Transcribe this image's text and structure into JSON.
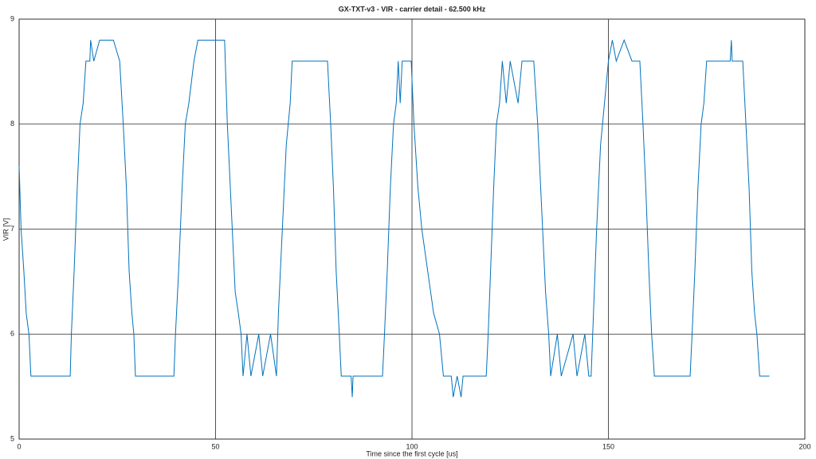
{
  "chart_data": {
    "type": "line",
    "title": "GX-TXT-v3 - VIR - carrier detail - 62.500 kHz",
    "x_label": "Time since the first cycle [us]",
    "y_label": "VIR [V]",
    "xlim": [
      0,
      200
    ],
    "xticks": [
      0,
      50,
      100,
      150,
      200
    ],
    "ylim": [
      5,
      9
    ],
    "yticks": [
      5,
      6,
      7,
      8,
      9
    ],
    "grid": true,
    "color": "#0072bd",
    "x": [
      0,
      0.5,
      1.2,
      1.8,
      2.5,
      3,
      13,
      13.3,
      14,
      14.8,
      15.5,
      16.3,
      17,
      18,
      18.2,
      19,
      20.5,
      24,
      25.6,
      26.5,
      27.3,
      28,
      28.7,
      29.2,
      29.6,
      39.4,
      39.8,
      40.6,
      41.5,
      42.3,
      43.2,
      44.5,
      45.5,
      52.3,
      53,
      54,
      55,
      55.8,
      56.5,
      57,
      58,
      59,
      61,
      62,
      64,
      65.5,
      66,
      67,
      68,
      69,
      69.5,
      78.5,
      79.3,
      80,
      80.7,
      81.5,
      82,
      84.5,
      84.8,
      85,
      92.5,
      93,
      93.7,
      94.5,
      95.3,
      96,
      96.5,
      97,
      97.5,
      99.8,
      100.5,
      101.5,
      102.5,
      104,
      105.5,
      107,
      108,
      110,
      110.5,
      111.5,
      112.5,
      113,
      118.9,
      119.4,
      120,
      120.8,
      121.5,
      122.3,
      123,
      124,
      125,
      127,
      128,
      131,
      132,
      133,
      134,
      134.8,
      135.3,
      137,
      138,
      141,
      142,
      144,
      145,
      145.6,
      146.2,
      147,
      148,
      149,
      150,
      151,
      152,
      154,
      156,
      158,
      158.8,
      159.5,
      160.3,
      161,
      161.7,
      170.8,
      171.3,
      172,
      172.8,
      173.6,
      174.3,
      175,
      181,
      181.3,
      181.5,
      184.2,
      185,
      185.8,
      186.5,
      187.2,
      187.8,
      188.5,
      190.5,
      191
    ],
    "values": [
      7.6,
      7.0,
      6.6,
      6.2,
      6.0,
      5.6,
      5.6,
      6.0,
      6.6,
      7.4,
      8.0,
      8.2,
      8.6,
      8.6,
      8.8,
      8.6,
      8.8,
      8.8,
      8.6,
      8.0,
      7.4,
      6.6,
      6.2,
      6.0,
      5.6,
      5.6,
      6.0,
      6.6,
      7.4,
      8.0,
      8.2,
      8.6,
      8.8,
      8.8,
      8.0,
      7.2,
      6.4,
      6.2,
      6.0,
      5.6,
      6.0,
      5.6,
      6.0,
      5.6,
      6.0,
      5.6,
      6.2,
      7.0,
      7.8,
      8.2,
      8.6,
      8.6,
      8.0,
      7.4,
      6.6,
      6.0,
      5.6,
      5.6,
      5.4,
      5.6,
      5.6,
      6.0,
      6.6,
      7.4,
      8.0,
      8.2,
      8.6,
      8.2,
      8.6,
      8.6,
      8.0,
      7.4,
      7.0,
      6.6,
      6.2,
      6.0,
      5.6,
      5.6,
      5.4,
      5.6,
      5.4,
      5.6,
      5.6,
      6.0,
      6.6,
      7.4,
      8.0,
      8.2,
      8.6,
      8.2,
      8.6,
      8.2,
      8.6,
      8.6,
      8.0,
      7.2,
      6.4,
      6.0,
      5.6,
      6.0,
      5.6,
      6.0,
      5.6,
      6.0,
      5.6,
      5.6,
      6.2,
      7.0,
      7.8,
      8.2,
      8.6,
      8.8,
      8.6,
      8.8,
      8.6,
      8.6,
      8.0,
      7.4,
      6.6,
      6.0,
      5.6,
      5.6,
      6.0,
      6.6,
      7.4,
      8.0,
      8.2,
      8.6,
      8.6,
      8.8,
      8.6,
      8.6,
      8.0,
      7.4,
      6.6,
      6.2,
      6.0,
      5.6,
      5.6,
      5.6
    ]
  }
}
